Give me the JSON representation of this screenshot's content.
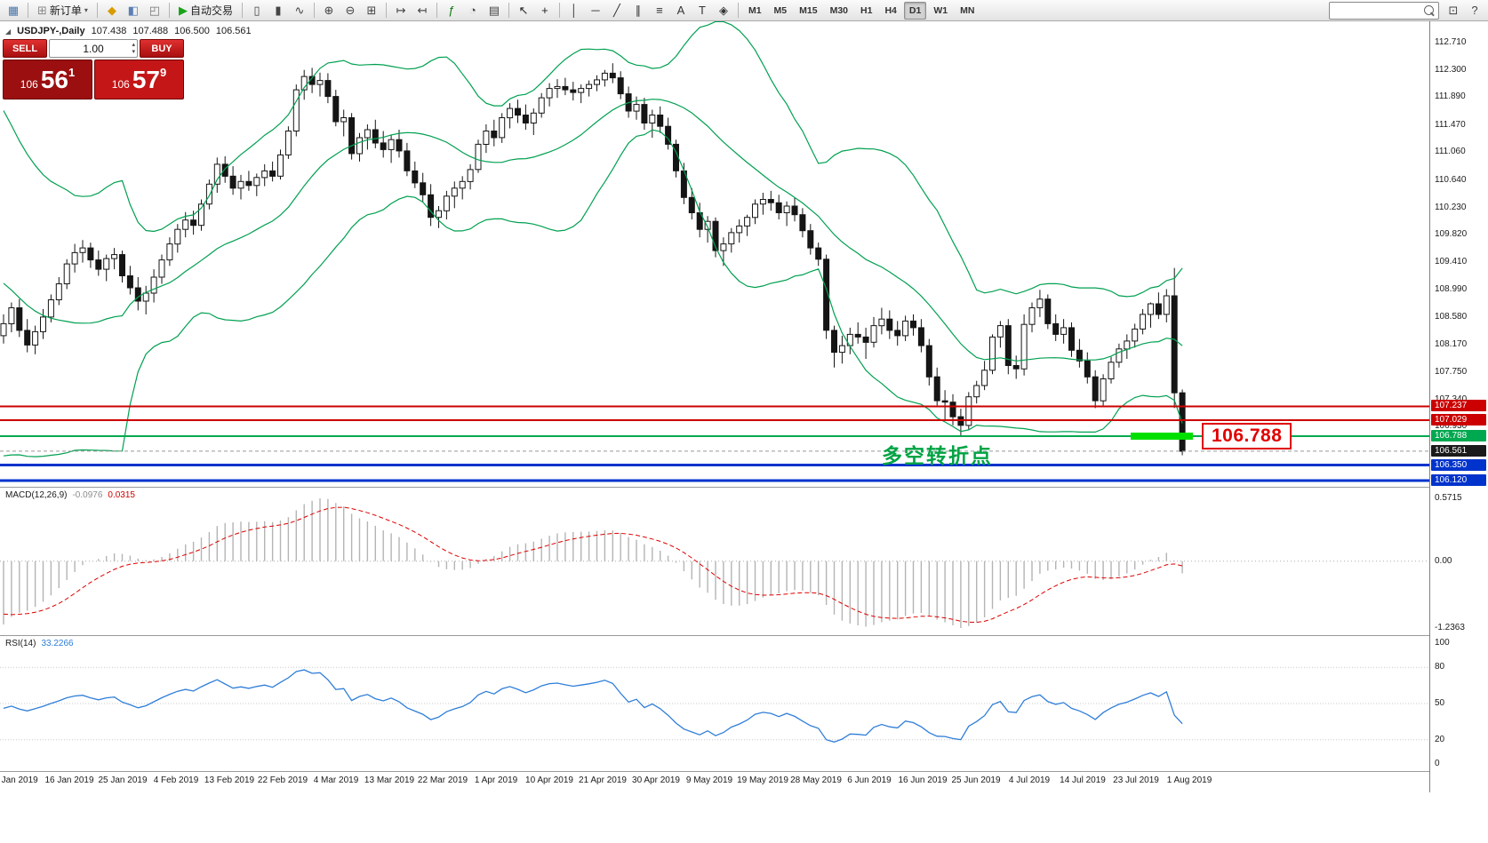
{
  "toolbar": {
    "groups": [
      [
        {
          "n": "chart-window-icon",
          "g": "▦",
          "c": "#4a76a8"
        }
      ],
      [
        {
          "n": "new-order-button",
          "g": "⊞",
          "c": "#888",
          "btn": "新订单",
          "dd": true
        }
      ],
      [
        {
          "n": "favorites-icon",
          "g": "◆",
          "c": "#d89c00"
        },
        {
          "n": "profile-icon",
          "g": "◧",
          "c": "#5b7fb5"
        },
        {
          "n": "alerts-icon",
          "g": "◰",
          "c": "#777"
        }
      ],
      [
        {
          "n": "autotrade-button",
          "g": "▶",
          "c": "#18a318",
          "btn": "自动交易"
        }
      ],
      [
        {
          "n": "bar-chart-icon",
          "g": "▯",
          "c": "#444"
        },
        {
          "n": "candlestick-icon",
          "g": "▮",
          "c": "#444"
        },
        {
          "n": "line-chart-icon",
          "g": "∿",
          "c": "#444"
        }
      ],
      [
        {
          "n": "zoom-in-icon",
          "g": "⊕",
          "c": "#444"
        },
        {
          "n": "zoom-out-icon",
          "g": "⊖",
          "c": "#444"
        },
        {
          "n": "tile-windows-icon",
          "g": "⊞",
          "c": "#444"
        }
      ],
      [
        {
          "n": "auto-scroll-icon",
          "g": "↦",
          "c": "#444"
        },
        {
          "n": "chart-shift-icon",
          "g": "↤",
          "c": "#444"
        }
      ],
      [
        {
          "n": "indicators-icon",
          "g": "ƒ",
          "c": "#0a7a0a"
        },
        {
          "n": "periods-icon",
          "g": "◔",
          "c": "#444"
        },
        {
          "n": "templates-icon",
          "g": "▤",
          "c": "#444"
        }
      ],
      [
        {
          "n": "cursor-icon",
          "g": "↖",
          "c": "#222"
        },
        {
          "n": "crosshair-icon",
          "g": "+",
          "c": "#222"
        }
      ],
      [
        {
          "n": "vertical-line-icon",
          "g": "│",
          "c": "#333"
        },
        {
          "n": "horizontal-line-icon",
          "g": "─",
          "c": "#333"
        },
        {
          "n": "trendline-icon",
          "g": "╱",
          "c": "#333"
        },
        {
          "n": "channel-icon",
          "g": "∥",
          "c": "#333"
        },
        {
          "n": "fibonacci-icon",
          "g": "≡",
          "c": "#333"
        },
        {
          "n": "text-icon",
          "g": "A",
          "c": "#333"
        },
        {
          "n": "label-icon",
          "g": "T",
          "c": "#333"
        },
        {
          "n": "shapes-icon",
          "g": "◈",
          "c": "#333"
        }
      ]
    ],
    "timeframes": [
      "M1",
      "M5",
      "M15",
      "M30",
      "H1",
      "H4",
      "D1",
      "W1",
      "MN"
    ],
    "active_timeframe": "D1",
    "search_value": "",
    "right_icons": [
      {
        "n": "data-window-icon",
        "g": "⊡",
        "c": "#444"
      },
      {
        "n": "help-icon",
        "g": "?",
        "c": "#444"
      }
    ]
  },
  "chart_header": {
    "symbol": "USDJPY-,Daily",
    "open": "107.438",
    "high": "107.488",
    "low": "106.500",
    "close": "106.561"
  },
  "quote_panel": {
    "sell_label": "SELL",
    "buy_label": "BUY",
    "lot": "1.00",
    "sell_prefix": "106",
    "sell_big": "56",
    "sell_sup": "1",
    "buy_prefix": "106",
    "buy_big": "57",
    "buy_sup": "9"
  },
  "annotations": {
    "turning_point": "多空转折点",
    "price_box": "106.788"
  },
  "price_axis": {
    "ticks": [
      "112.710",
      "112.300",
      "111.890",
      "111.470",
      "111.060",
      "110.640",
      "110.230",
      "109.820",
      "109.410",
      "108.990",
      "108.580",
      "108.170",
      "107.750",
      "107.340",
      "106.930"
    ],
    "tags": [
      {
        "text": "107.237",
        "price": 107.237,
        "color": "#cc0000",
        "kind": "level",
        "w": 2
      },
      {
        "text": "107.029",
        "price": 107.029,
        "color": "#cc0000",
        "kind": "level",
        "w": 2
      },
      {
        "text": "106.788",
        "price": 106.788,
        "color": "#00a84f",
        "kind": "level",
        "w": 2
      },
      {
        "text": "106.561",
        "price": 106.561,
        "color": "#1a1a1a",
        "kind": "bid"
      },
      {
        "text": "106.350",
        "price": 106.35,
        "color": "#0033cc",
        "kind": "level",
        "w": 3
      },
      {
        "text": "106.120",
        "price": 106.12,
        "color": "#0033cc",
        "kind": "level",
        "w": 3
      }
    ]
  },
  "x_axis": {
    "labels": [
      "7 Jan 2019",
      "16 Jan 2019",
      "25 Jan 2019",
      "4 Feb 2019",
      "13 Feb 2019",
      "22 Feb 2019",
      "4 Mar 2019",
      "13 Mar 2019",
      "22 Mar 2019",
      "1 Apr 2019",
      "10 Apr 2019",
      "21 Apr 2019",
      "30 Apr 2019",
      "9 May 2019",
      "19 May 2019",
      "28 May 2019",
      "6 Jun 2019",
      "16 Jun 2019",
      "25 Jun 2019",
      "4 Jul 2019",
      "14 Jul 2019",
      "23 Jul 2019",
      "1 Aug 2019"
    ]
  },
  "macd_panel": {
    "name": "MACD(12,26,9)",
    "value_main": "-0.0976",
    "value_signal": "0.0315",
    "scale_max": "0.5715",
    "scale_zero": "0.00",
    "scale_min": "-1.2363"
  },
  "rsi_panel": {
    "name": "RSI(14)",
    "value": "33.2266",
    "levels": [
      "100",
      "80",
      "50",
      "20",
      "0"
    ]
  },
  "chart_data": {
    "type": "candlestick",
    "symbol": "USDJPY",
    "timeframe": "D1",
    "visible_range": {
      "price_top": 112.71,
      "price_bottom": 106.12
    },
    "bollinger": {
      "period": 20,
      "deviation": 2,
      "color": "#00a050"
    },
    "macd": {
      "fast": 12,
      "slow": 26,
      "signal": 9
    },
    "rsi": {
      "period": 14
    },
    "current_bid": 106.561,
    "highlight_segment": {
      "price": 106.788,
      "color": "#00e000"
    },
    "prehistory_closes": [
      110.3,
      110.1,
      110.4,
      110.5,
      110.2,
      109.9,
      110.1,
      110.3,
      110.5,
      110.4,
      110.6,
      110.8,
      110.7,
      110.4,
      110.1,
      109.9,
      109.7,
      109.6,
      109.8,
      110.0,
      109.7,
      109.4,
      108.9,
      108.6,
      108.9,
      108.9,
      105.6,
      106.6,
      107.5,
      108.2
    ],
    "candles": [
      [
        108.3,
        108.62,
        108.18,
        108.48
      ],
      [
        108.48,
        108.8,
        108.35,
        108.72
      ],
      [
        108.72,
        108.85,
        108.28,
        108.38
      ],
      [
        108.38,
        108.55,
        108.05,
        108.16
      ],
      [
        108.16,
        108.45,
        108.02,
        108.36
      ],
      [
        108.36,
        108.7,
        108.25,
        108.58
      ],
      [
        108.58,
        108.92,
        108.5,
        108.84
      ],
      [
        108.84,
        109.18,
        108.76,
        109.08
      ],
      [
        109.08,
        109.45,
        109.0,
        109.38
      ],
      [
        109.38,
        109.68,
        109.25,
        109.55
      ],
      [
        109.55,
        109.74,
        109.4,
        109.62
      ],
      [
        109.62,
        109.7,
        109.32,
        109.44
      ],
      [
        109.44,
        109.58,
        109.2,
        109.3
      ],
      [
        109.3,
        109.52,
        109.12,
        109.46
      ],
      [
        109.46,
        109.62,
        109.3,
        109.52
      ],
      [
        109.52,
        109.58,
        109.1,
        109.2
      ],
      [
        109.2,
        109.35,
        108.92,
        109.02
      ],
      [
        109.02,
        109.18,
        108.68,
        108.82
      ],
      [
        108.82,
        109.05,
        108.62,
        108.94
      ],
      [
        108.94,
        109.3,
        108.8,
        109.18
      ],
      [
        109.18,
        109.52,
        109.08,
        109.44
      ],
      [
        109.44,
        109.78,
        109.35,
        109.68
      ],
      [
        109.68,
        109.98,
        109.55,
        109.9
      ],
      [
        109.9,
        110.16,
        109.78,
        110.04
      ],
      [
        110.04,
        110.18,
        109.82,
        109.96
      ],
      [
        109.96,
        110.35,
        109.88,
        110.28
      ],
      [
        110.28,
        110.65,
        110.2,
        110.58
      ],
      [
        110.58,
        110.98,
        110.45,
        110.88
      ],
      [
        110.88,
        111.0,
        110.6,
        110.7
      ],
      [
        110.7,
        110.85,
        110.42,
        110.52
      ],
      [
        110.52,
        110.72,
        110.35,
        110.62
      ],
      [
        110.62,
        110.78,
        110.48,
        110.56
      ],
      [
        110.56,
        110.74,
        110.4,
        110.68
      ],
      [
        110.68,
        110.88,
        110.55,
        110.78
      ],
      [
        110.78,
        110.92,
        110.62,
        110.7
      ],
      [
        110.7,
        111.1,
        110.65,
        111.02
      ],
      [
        111.02,
        111.45,
        110.96,
        111.38
      ],
      [
        111.38,
        112.08,
        111.3,
        112.0
      ],
      [
        112.0,
        112.3,
        111.85,
        112.2
      ],
      [
        112.2,
        112.33,
        111.95,
        112.08
      ],
      [
        112.08,
        112.26,
        111.9,
        112.14
      ],
      [
        112.14,
        112.25,
        111.8,
        111.9
      ],
      [
        111.9,
        112.0,
        111.45,
        111.52
      ],
      [
        111.52,
        111.7,
        111.3,
        111.58
      ],
      [
        111.58,
        111.65,
        110.95,
        111.04
      ],
      [
        111.04,
        111.35,
        110.92,
        111.28
      ],
      [
        111.28,
        111.48,
        111.1,
        111.4
      ],
      [
        111.4,
        111.55,
        111.12,
        111.2
      ],
      [
        111.2,
        111.38,
        110.98,
        111.1
      ],
      [
        111.1,
        111.32,
        110.9,
        111.25
      ],
      [
        111.25,
        111.4,
        110.98,
        111.08
      ],
      [
        111.08,
        111.2,
        110.7,
        110.78
      ],
      [
        110.78,
        110.92,
        110.52,
        110.6
      ],
      [
        110.6,
        110.75,
        110.32,
        110.42
      ],
      [
        110.42,
        110.58,
        109.95,
        110.08
      ],
      [
        110.08,
        110.25,
        109.92,
        110.18
      ],
      [
        110.18,
        110.48,
        110.05,
        110.4
      ],
      [
        110.4,
        110.62,
        110.22,
        110.52
      ],
      [
        110.52,
        110.7,
        110.35,
        110.62
      ],
      [
        110.62,
        110.88,
        110.5,
        110.8
      ],
      [
        110.8,
        111.25,
        110.75,
        111.18
      ],
      [
        111.18,
        111.48,
        111.05,
        111.38
      ],
      [
        111.38,
        111.55,
        111.15,
        111.28
      ],
      [
        111.28,
        111.65,
        111.2,
        111.58
      ],
      [
        111.58,
        111.8,
        111.42,
        111.72
      ],
      [
        111.72,
        111.85,
        111.5,
        111.62
      ],
      [
        111.62,
        111.78,
        111.4,
        111.5
      ],
      [
        111.5,
        111.72,
        111.32,
        111.65
      ],
      [
        111.65,
        111.95,
        111.58,
        111.88
      ],
      [
        111.88,
        112.1,
        111.75,
        112.02
      ],
      [
        112.02,
        112.16,
        111.88,
        112.05
      ],
      [
        112.05,
        112.18,
        111.92,
        112.0
      ],
      [
        112.0,
        112.12,
        111.84,
        111.96
      ],
      [
        111.96,
        112.08,
        111.8,
        112.02
      ],
      [
        112.02,
        112.14,
        111.9,
        112.08
      ],
      [
        112.08,
        112.22,
        111.98,
        112.15
      ],
      [
        112.15,
        112.3,
        112.05,
        112.25
      ],
      [
        112.25,
        112.4,
        112.1,
        112.18
      ],
      [
        112.18,
        112.28,
        111.86,
        111.94
      ],
      [
        111.94,
        112.05,
        111.58,
        111.68
      ],
      [
        111.68,
        111.9,
        111.55,
        111.78
      ],
      [
        111.78,
        111.88,
        111.4,
        111.5
      ],
      [
        111.5,
        111.7,
        111.28,
        111.62
      ],
      [
        111.62,
        111.75,
        111.35,
        111.45
      ],
      [
        111.45,
        111.58,
        111.1,
        111.18
      ],
      [
        111.18,
        111.25,
        110.68,
        110.78
      ],
      [
        110.78,
        110.9,
        110.28,
        110.38
      ],
      [
        110.38,
        110.52,
        110.05,
        110.15
      ],
      [
        110.15,
        110.3,
        109.78,
        109.9
      ],
      [
        109.9,
        110.1,
        109.7,
        110.02
      ],
      [
        110.02,
        110.08,
        109.48,
        109.58
      ],
      [
        109.58,
        109.78,
        109.35,
        109.68
      ],
      [
        109.68,
        109.92,
        109.55,
        109.85
      ],
      [
        109.85,
        110.05,
        109.7,
        109.95
      ],
      [
        109.95,
        110.12,
        109.8,
        110.08
      ],
      [
        110.08,
        110.35,
        109.98,
        110.28
      ],
      [
        110.28,
        110.45,
        110.12,
        110.35
      ],
      [
        110.35,
        110.48,
        110.18,
        110.3
      ],
      [
        110.3,
        110.42,
        110.05,
        110.15
      ],
      [
        110.15,
        110.32,
        109.95,
        110.25
      ],
      [
        110.25,
        110.38,
        110.02,
        110.12
      ],
      [
        110.12,
        110.22,
        109.78,
        109.88
      ],
      [
        109.88,
        109.98,
        109.52,
        109.62
      ],
      [
        109.62,
        109.7,
        109.35,
        109.45
      ],
      [
        109.45,
        109.52,
        108.25,
        108.38
      ],
      [
        108.38,
        108.45,
        107.82,
        108.05
      ],
      [
        108.05,
        108.3,
        107.88,
        108.15
      ],
      [
        108.15,
        108.42,
        108.02,
        108.32
      ],
      [
        108.32,
        108.5,
        108.18,
        108.28
      ],
      [
        108.28,
        108.42,
        107.95,
        108.2
      ],
      [
        108.2,
        108.58,
        108.12,
        108.45
      ],
      [
        108.45,
        108.72,
        108.32,
        108.55
      ],
      [
        108.55,
        108.68,
        108.25,
        108.38
      ],
      [
        108.38,
        108.52,
        108.15,
        108.3
      ],
      [
        108.3,
        108.6,
        108.22,
        108.52
      ],
      [
        108.52,
        108.62,
        108.3,
        108.42
      ],
      [
        108.42,
        108.55,
        108.05,
        108.15
      ],
      [
        108.15,
        108.25,
        107.55,
        107.68
      ],
      [
        107.68,
        107.82,
        107.25,
        107.32
      ],
      [
        107.32,
        107.48,
        107.04,
        107.3
      ],
      [
        107.3,
        107.42,
        106.95,
        107.08
      ],
      [
        107.08,
        107.2,
        106.78,
        106.95
      ],
      [
        106.95,
        107.45,
        106.88,
        107.38
      ],
      [
        107.38,
        107.62,
        107.28,
        107.55
      ],
      [
        107.55,
        107.92,
        107.48,
        107.78
      ],
      [
        107.78,
        108.32,
        107.72,
        108.28
      ],
      [
        108.28,
        108.52,
        108.12,
        108.45
      ],
      [
        108.45,
        108.55,
        107.72,
        107.85
      ],
      [
        107.85,
        108.0,
        107.65,
        107.8
      ],
      [
        107.8,
        108.62,
        107.7,
        108.47
      ],
      [
        108.47,
        108.8,
        108.35,
        108.72
      ],
      [
        108.72,
        108.99,
        108.58,
        108.85
      ],
      [
        108.85,
        108.92,
        108.4,
        108.48
      ],
      [
        108.48,
        108.62,
        108.22,
        108.32
      ],
      [
        108.32,
        108.55,
        108.18,
        108.42
      ],
      [
        108.42,
        108.5,
        107.98,
        108.08
      ],
      [
        108.08,
        108.25,
        107.82,
        107.92
      ],
      [
        107.92,
        108.05,
        107.58,
        107.68
      ],
      [
        107.68,
        107.78,
        107.21,
        107.32
      ],
      [
        107.32,
        107.72,
        107.25,
        107.65
      ],
      [
        107.65,
        107.98,
        107.58,
        107.9
      ],
      [
        107.9,
        108.18,
        107.82,
        108.1
      ],
      [
        108.1,
        108.32,
        107.95,
        108.22
      ],
      [
        108.22,
        108.48,
        108.12,
        108.4
      ],
      [
        108.4,
        108.7,
        108.32,
        108.62
      ],
      [
        108.62,
        108.8,
        108.42,
        108.78
      ],
      [
        108.78,
        108.95,
        108.55,
        108.62
      ],
      [
        108.62,
        109.0,
        108.5,
        108.9
      ],
      [
        108.9,
        109.32,
        107.21,
        107.44
      ],
      [
        107.44,
        107.49,
        106.5,
        106.56
      ]
    ]
  }
}
